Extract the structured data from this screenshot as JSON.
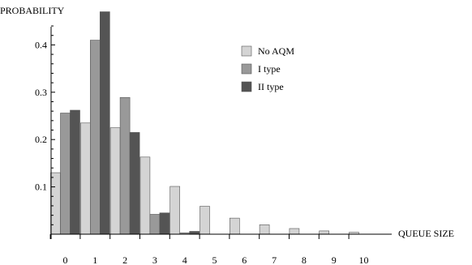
{
  "chart_data": {
    "type": "bar",
    "title": "",
    "xlabel": "QUEUE SIZE",
    "ylabel": "PROBABILITY",
    "categories": [
      "0",
      "1",
      "2",
      "3",
      "4",
      "5",
      "6",
      "7",
      "8",
      "9",
      "10"
    ],
    "ylim": [
      0,
      0.5
    ],
    "yticks": [
      "0.1",
      "0.2",
      "0.3",
      "0.4"
    ],
    "legend_position": "top-right",
    "grid": false,
    "series": [
      {
        "name": "No AQM",
        "color": "#d4d4d4",
        "values": [
          0.13,
          0.235,
          0.225,
          0.163,
          0.101,
          0.059,
          0.034,
          0.02,
          0.012,
          0.007,
          0.004
        ]
      },
      {
        "name": "I type",
        "color": "#999999",
        "values": [
          0.256,
          0.41,
          0.289,
          0.042,
          0.003,
          0,
          0,
          0,
          0,
          0,
          0
        ]
      },
      {
        "name": "II type",
        "color": "#545454",
        "values": [
          0.262,
          0.47,
          0.215,
          0.045,
          0.006,
          0,
          0,
          0,
          0,
          0,
          0
        ]
      }
    ]
  }
}
